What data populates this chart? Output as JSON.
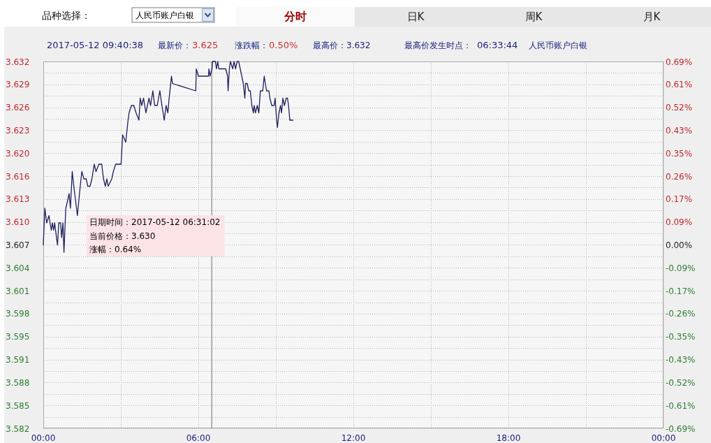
{
  "chart_data": {
    "type": "line",
    "annotations": [
      "品种选择：",
      "人民币账户白银",
      "分时",
      "日K",
      "周K",
      "月K",
      "2017-05-12 09:40:38",
      "最新价：",
      "3.625",
      "涨跌幅：",
      "0.50%",
      "最高价：3.632",
      "最高价发生时点：",
      "06:33:44",
      "人民币账户白银",
      "日期时间：2017-05-12 06:31:02",
      "当前价格：3.630",
      "涨幅：0.64%"
    ],
    "x": [
      0.0,
      0.06,
      0.13,
      0.22,
      0.26,
      0.31,
      0.35,
      0.4,
      0.44,
      0.51,
      0.55,
      0.6,
      0.67,
      0.71,
      0.76,
      0.8,
      0.87,
      0.94,
      1.0,
      1.05,
      1.12,
      1.18,
      1.25,
      1.32,
      1.4,
      1.49,
      1.57,
      1.66,
      1.72,
      1.81,
      1.88,
      1.97,
      2.04,
      2.15,
      2.26,
      2.33,
      2.4,
      2.46,
      2.51,
      2.65,
      2.71,
      2.8,
      3.01,
      3.07,
      3.19,
      3.28,
      3.32,
      3.41,
      3.5,
      3.59,
      3.7,
      3.75,
      3.81,
      3.88,
      3.97,
      4.09,
      4.15,
      4.24,
      4.31,
      4.41,
      4.51,
      4.59,
      4.68,
      4.75,
      4.82,
      4.87,
      4.96,
      5.0,
      5.9,
      5.92,
      6.0,
      6.39,
      6.41,
      6.45,
      6.53,
      6.55,
      6.66,
      6.7,
      6.75,
      6.79,
      7.06,
      7.13,
      7.15,
      7.2,
      7.24,
      7.33,
      7.38,
      7.44,
      7.5,
      7.56,
      7.62,
      7.68,
      7.74,
      7.8,
      7.83,
      7.89,
      7.95,
      8.01,
      8.07,
      8.13,
      8.16,
      8.21,
      8.28,
      8.34,
      8.4,
      8.49,
      8.55,
      8.59,
      8.64,
      8.73,
      8.77,
      8.84,
      8.93,
      8.97,
      9.03,
      9.06,
      9.12,
      9.18,
      9.22,
      9.27,
      9.33,
      9.4,
      9.45,
      9.49,
      9.54,
      9.66
    ],
    "series": [
      {
        "color": "#1c1f5e",
        "values": [
          3.607,
          3.612,
          3.61,
          3.611,
          3.61,
          3.609,
          3.61,
          3.609,
          3.61,
          3.608,
          3.607,
          3.61,
          3.61,
          3.608,
          3.61,
          3.606,
          3.612,
          3.613,
          3.614,
          3.612,
          3.617,
          3.615,
          3.613,
          3.611,
          3.614,
          3.617,
          3.616,
          3.616,
          3.615,
          3.615,
          3.616,
          3.618,
          3.617,
          3.618,
          3.618,
          3.616,
          3.615,
          3.616,
          3.615,
          3.616,
          3.617,
          3.618,
          3.618,
          3.622,
          3.621,
          3.624,
          3.625,
          3.626,
          3.626,
          3.625,
          3.624,
          3.627,
          3.626,
          3.627,
          3.625,
          3.627,
          3.626,
          3.628,
          3.626,
          3.626,
          3.628,
          3.626,
          3.624,
          3.626,
          3.625,
          3.627,
          3.63,
          3.629,
          3.628,
          3.631,
          3.63,
          3.63,
          3.631,
          3.63,
          3.631,
          3.632,
          3.632,
          3.631,
          3.632,
          3.631,
          3.631,
          3.63,
          3.628,
          3.631,
          3.632,
          3.631,
          3.632,
          3.631,
          3.632,
          3.632,
          3.631,
          3.63,
          3.629,
          3.627,
          3.629,
          3.629,
          3.628,
          3.628,
          3.626,
          3.625,
          3.626,
          3.625,
          3.626,
          3.625,
          3.628,
          3.628,
          3.63,
          3.629,
          3.628,
          3.628,
          3.627,
          3.626,
          3.626,
          3.627,
          3.624,
          3.623,
          3.625,
          3.626,
          3.625,
          3.627,
          3.626,
          3.627,
          3.627,
          3.626,
          3.624,
          3.624
        ]
      }
    ],
    "xlim": [
      0,
      24
    ],
    "xticks": [
      {
        "value": 0,
        "label": "00:00"
      },
      {
        "value": 3,
        "label": null
      },
      {
        "value": 6,
        "label": "06:00"
      },
      {
        "value": 9,
        "label": null
      },
      {
        "value": 12,
        "label": "12:00"
      },
      {
        "value": 15,
        "label": null
      },
      {
        "value": 18,
        "label": "18:00"
      },
      {
        "value": 21,
        "label": null
      },
      {
        "value": 24,
        "label": "00:00"
      }
    ],
    "ylim": [
      3.582,
      3.632
    ],
    "yticks": [
      3.582,
      {
        "value": 3.5835625,
        "label": null
      },
      {
        "value": 3.585125,
        "label": "3.585"
      },
      {
        "value": 3.5866875,
        "label": null
      },
      {
        "value": 3.58825,
        "label": "3.588"
      },
      {
        "value": 3.5898125,
        "label": null
      },
      {
        "value": 3.591375,
        "label": "3.591"
      },
      {
        "value": 3.5929375,
        "label": null
      },
      {
        "value": 3.5945,
        "label": "3.595"
      },
      {
        "value": 3.5960625,
        "label": null
      },
      {
        "value": 3.597625,
        "label": "3.598"
      },
      {
        "value": 3.5991875,
        "label": null
      },
      {
        "value": 3.60075,
        "label": "3.601"
      },
      {
        "value": 3.6023125,
        "label": null
      },
      {
        "value": 3.603875,
        "label": "3.604"
      },
      {
        "value": 3.6054375,
        "label": null
      },
      3.607,
      {
        "value": 3.6085625,
        "label": null
      },
      {
        "value": 3.610125,
        "label": "3.610"
      },
      {
        "value": 3.6116875,
        "label": null
      },
      {
        "value": 3.61325,
        "label": "3.613"
      },
      {
        "value": 3.6148125,
        "label": null
      },
      {
        "value": 3.616375,
        "label": "3.616"
      },
      {
        "value": 3.6179375,
        "label": null
      },
      {
        "value": 3.6195,
        "label": "3.620"
      },
      {
        "value": 3.6210625,
        "label": null
      },
      {
        "value": 3.622625,
        "label": "3.623"
      },
      {
        "value": 3.6241875,
        "label": null
      },
      {
        "value": 3.62575,
        "label": "3.626"
      },
      {
        "value": 3.6273125,
        "label": null
      },
      {
        "value": 3.628875,
        "label": "3.629"
      },
      {
        "value": 3.6304375,
        "label": null
      },
      3.632
    ],
    "y2lim": [
      -0.6931,
      0.6931
    ],
    "y2ticks": [
      {
        "value": -0.6931,
        "label": "-0.69%"
      },
      {
        "value": -0.6065,
        "label": "-0.61%"
      },
      {
        "value": -0.5198,
        "label": "-0.52%"
      },
      {
        "value": -0.4332,
        "label": "-0.43%"
      },
      {
        "value": -0.3466,
        "label": "-0.35%"
      },
      {
        "value": -0.2599,
        "label": "-0.26%"
      },
      {
        "value": -0.1733,
        "label": "-0.17%"
      },
      {
        "value": -0.0866,
        "label": "-0.09%"
      },
      {
        "value": 0,
        "label": "0.00%"
      },
      {
        "value": 0.0866,
        "label": "0.09%"
      },
      {
        "value": 0.1733,
        "label": "0.17%"
      },
      {
        "value": 0.2599,
        "label": "0.26%"
      },
      {
        "value": 0.3466,
        "label": "0.35%"
      },
      {
        "value": 0.4332,
        "label": "0.43%"
      },
      {
        "value": 0.5198,
        "label": "0.52%"
      },
      {
        "value": 0.6065,
        "label": "0.61%"
      },
      {
        "value": 0.6931,
        "label": "0.69%"
      }
    ],
    "grid": true,
    "line_style": "solid",
    "ref_lines": [
      {
        "axis": "x",
        "value": 6.517,
        "color": "#6e6e6e"
      }
    ]
  }
}
